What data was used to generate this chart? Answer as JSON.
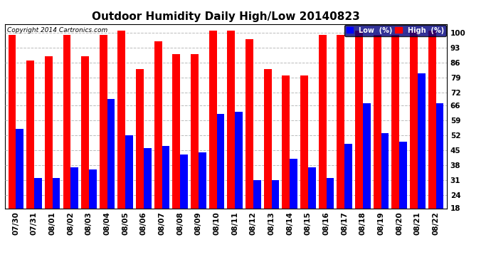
{
  "title": "Outdoor Humidity Daily High/Low 20140823",
  "copyright": "Copyright 2014 Cartronics.com",
  "categories": [
    "07/30",
    "07/31",
    "08/01",
    "08/02",
    "08/03",
    "08/04",
    "08/05",
    "08/06",
    "08/07",
    "08/08",
    "08/09",
    "08/10",
    "08/11",
    "08/12",
    "08/13",
    "08/14",
    "08/15",
    "08/16",
    "08/17",
    "08/18",
    "08/19",
    "08/20",
    "08/21",
    "08/22"
  ],
  "high_values": [
    99,
    87,
    89,
    99,
    89,
    99,
    101,
    83,
    96,
    90,
    90,
    101,
    101,
    97,
    83,
    80,
    80,
    99,
    99,
    101,
    99,
    99,
    101,
    101
  ],
  "low_values": [
    55,
    32,
    32,
    37,
    36,
    69,
    52,
    46,
    47,
    43,
    44,
    62,
    63,
    31,
    31,
    41,
    37,
    32,
    48,
    67,
    53,
    49,
    81,
    67
  ],
  "high_color": "#ff0000",
  "low_color": "#0000ff",
  "bg_color": "#ffffff",
  "grid_color": "#bbbbbb",
  "yticks": [
    18,
    24,
    31,
    38,
    45,
    52,
    59,
    66,
    72,
    79,
    86,
    93,
    100
  ],
  "ylim": [
    18,
    104
  ],
  "bar_width": 0.42,
  "title_fontsize": 11,
  "tick_fontsize": 7.5,
  "legend_low_label": "Low  (%)",
  "legend_high_label": "High  (%)"
}
